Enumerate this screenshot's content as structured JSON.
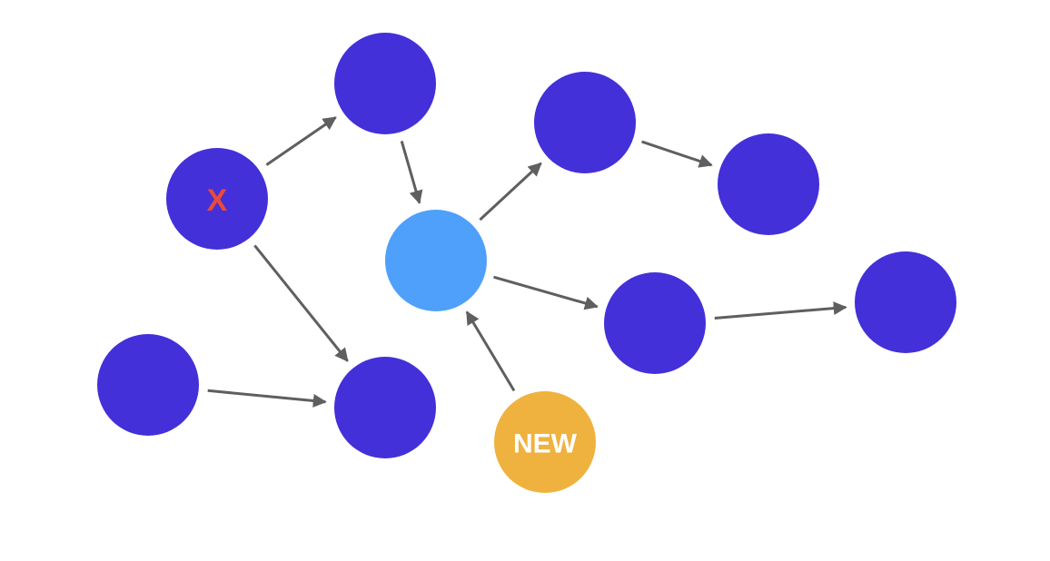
{
  "colors": {
    "background": "#ffffff",
    "node_default": "#4330d8",
    "node_focus": "#4ea0fa",
    "node_new": "#f0b23e",
    "edge": "#5f5f5f",
    "label_removed": "#ea4a3a",
    "label_new": "#ffffff"
  },
  "nodes": [
    {
      "id": "n1",
      "role": "default",
      "label": ""
    },
    {
      "id": "n2",
      "role": "removed",
      "label": "X"
    },
    {
      "id": "n3",
      "role": "focus",
      "label": ""
    },
    {
      "id": "n4",
      "role": "default",
      "label": ""
    },
    {
      "id": "n5",
      "role": "default",
      "label": ""
    },
    {
      "id": "n6",
      "role": "default",
      "label": ""
    },
    {
      "id": "n7",
      "role": "default",
      "label": ""
    },
    {
      "id": "n8",
      "role": "default",
      "label": ""
    },
    {
      "id": "n9",
      "role": "default",
      "label": ""
    },
    {
      "id": "n10",
      "role": "new",
      "label": "NEW"
    }
  ],
  "edges": [
    {
      "from": "n2",
      "to": "n1"
    },
    {
      "from": "n2",
      "to": "n9"
    },
    {
      "from": "n1",
      "to": "n3"
    },
    {
      "from": "n3",
      "to": "n4"
    },
    {
      "from": "n3",
      "to": "n6"
    },
    {
      "from": "n4",
      "to": "n5"
    },
    {
      "from": "n6",
      "to": "n7"
    },
    {
      "from": "n8",
      "to": "n9"
    },
    {
      "from": "n10",
      "to": "n3"
    }
  ]
}
